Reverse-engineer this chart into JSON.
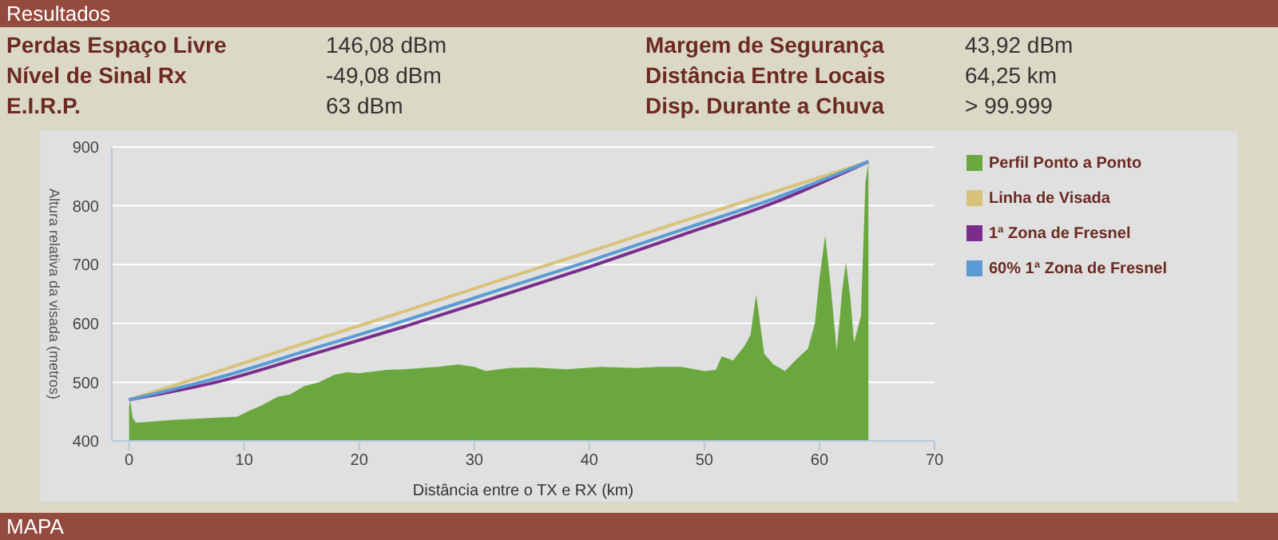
{
  "chart_data": {
    "type": "area",
    "xlabel": "Distância entre o TX e RX (km)",
    "ylabel": "Altura relativa da visada (metros)",
    "annotations": [
      "Resultados",
      "Perdas Espaço Livre",
      "146,08 dBm",
      "Margem de Segurança",
      "43,92 dBm",
      "Nível de Sinal Rx",
      "-49,08 dBm",
      "Distância Entre Locais",
      "64,25 km",
      "E.I.R.P.",
      "63 dBm",
      "Disp. Durante a Chuva",
      "> 99.999",
      "MAPA"
    ],
    "xlim": [
      -1.5,
      70
    ],
    "xticks": [
      0,
      10,
      20,
      30,
      40,
      50,
      60,
      70
    ],
    "ylim": [
      400,
      900
    ],
    "yticks": [
      400,
      500,
      600,
      700,
      800,
      900
    ],
    "grid": "y",
    "legend": "right",
    "marker": "none",
    "series": [
      {
        "name": "Perfil Ponto a Ponto",
        "color": "#6aa83f",
        "x": [
          0,
          0.1,
          0.3,
          0.6,
          2,
          4,
          6,
          8,
          9.4,
          10.5,
          11.5,
          12.9,
          14,
          15.2,
          16.5,
          17.8,
          18.9,
          20,
          22.4,
          24,
          26.8,
          28.6,
          30,
          31,
          33,
          35,
          38,
          41,
          44,
          46,
          48,
          50,
          51,
          51.5,
          52.5,
          53.5,
          54,
          54.5,
          55.2,
          56,
          57,
          58,
          59,
          59.6,
          60,
          60.5,
          61,
          61.5,
          62,
          62.3,
          62.7,
          63,
          63.6,
          64,
          64.25
        ],
        "values": [
          457,
          470,
          440,
          431,
          433,
          436,
          438,
          440,
          441,
          452,
          460,
          475,
          479,
          493,
          500,
          512,
          517,
          515,
          521,
          522,
          526,
          530,
          526,
          519,
          524,
          525,
          522,
          526,
          524,
          526,
          526,
          519,
          521,
          544,
          537,
          562,
          580,
          649,
          548,
          530,
          519,
          539,
          557,
          600,
          677,
          750,
          658,
          553,
          660,
          704,
          640,
          567,
          612,
          841,
          873
        ]
      },
      {
        "name": "Linha de Visada",
        "type": "line",
        "color": "#d9c27a",
        "x": [
          0,
          8,
          16,
          24,
          32,
          40,
          48,
          56,
          64.25
        ],
        "values": [
          470,
          520,
          571,
          621,
          672,
          722,
          773,
          823,
          875
        ]
      },
      {
        "name": "1ª Zona de Fresnel",
        "type": "line",
        "color": "#7b2d8e",
        "x": [
          0,
          8,
          16,
          24,
          32,
          40,
          48,
          56,
          64.25
        ],
        "values": [
          470,
          502,
          548,
          595,
          645,
          696,
          750,
          805,
          875
        ]
      },
      {
        "name": "60% 1ª Zona de Fresnel",
        "type": "line",
        "color": "#5b9bd5",
        "x": [
          0,
          8,
          16,
          24,
          32,
          40,
          48,
          56,
          64.25
        ],
        "values": [
          470,
          509,
          557,
          605,
          656,
          706,
          759,
          812,
          875
        ]
      }
    ]
  }
}
